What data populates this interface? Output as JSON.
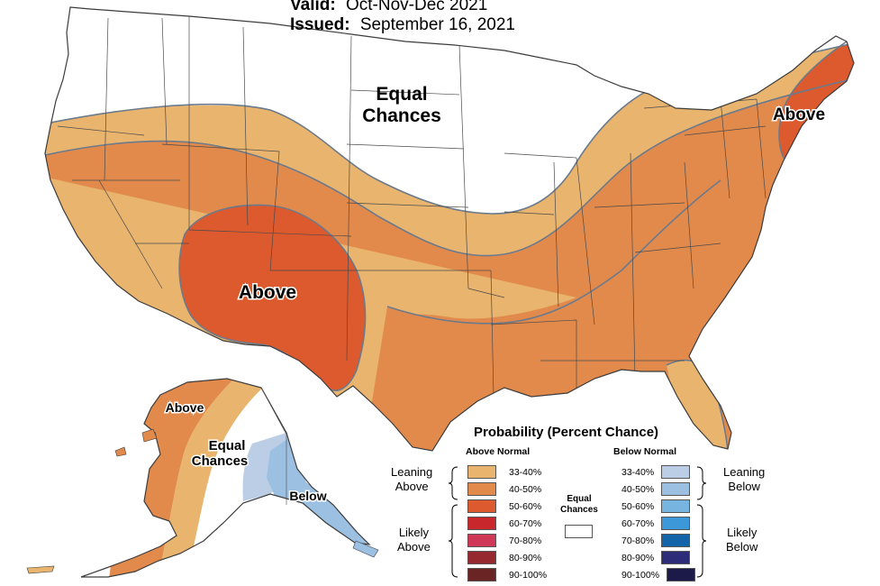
{
  "header": {
    "valid_label": "Valid:",
    "valid_value": "Oct-Nov-Dec 2021",
    "issued_label": "Issued:",
    "issued_value": "September 16, 2021"
  },
  "map_labels": {
    "conus_equal": [
      "Equal",
      "Chances"
    ],
    "southwest_above": "Above",
    "northeast_above": "Above",
    "alaska_above": "Above",
    "alaska_equal": [
      "Equal",
      "Chances"
    ],
    "alaska_below": "Below"
  },
  "colors": {
    "lean_above": "#e8b46e",
    "above_40_50": "#e28a4c",
    "above_50_60": "#dc5a2e",
    "equal": "#ffffff",
    "lean_below": "#bccde6",
    "below_40_50": "#9cc0e2",
    "state_line": "#4a4a4a",
    "contour_line": "#6b7a8c"
  },
  "legend": {
    "title": "Probability (Percent Chance)",
    "above_header": "Above Normal",
    "below_header": "Below Normal",
    "equal_label": [
      "Equal",
      "Chances"
    ],
    "leaning_above": [
      "Leaning",
      "Above"
    ],
    "likely_above": [
      "Likely",
      "Above"
    ],
    "leaning_below": [
      "Leaning",
      "Below"
    ],
    "likely_below": [
      "Likely",
      "Below"
    ],
    "above_items": [
      {
        "label": "33-40%",
        "color": "#e8b46e"
      },
      {
        "label": "40-50%",
        "color": "#e28a4c"
      },
      {
        "label": "50-60%",
        "color": "#dc5a2e"
      },
      {
        "label": "60-70%",
        "color": "#c8282c"
      },
      {
        "label": "70-80%",
        "color": "#d03858"
      },
      {
        "label": "80-90%",
        "color": "#962830"
      },
      {
        "label": "90-100%",
        "color": "#6a2424"
      }
    ],
    "below_items": [
      {
        "label": "33-40%",
        "color": "#bccde6"
      },
      {
        "label": "40-50%",
        "color": "#9cc0e2"
      },
      {
        "label": "50-60%",
        "color": "#78b4e0"
      },
      {
        "label": "60-70%",
        "color": "#3c98d8"
      },
      {
        "label": "70-80%",
        "color": "#1464aa"
      },
      {
        "label": "80-90%",
        "color": "#2c2c78"
      },
      {
        "label": "90-100%",
        "color": "#1c1a48"
      }
    ]
  }
}
